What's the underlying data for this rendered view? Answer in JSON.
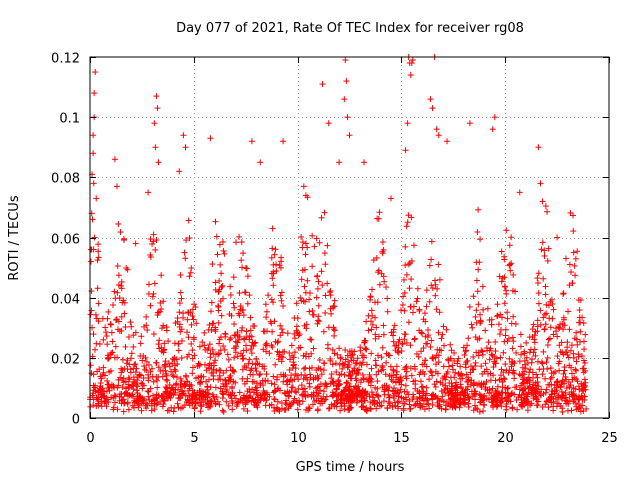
{
  "chart_data": {
    "type": "scatter",
    "title": "Day 077 of 2021, Rate Of TEC Index for receiver rg08",
    "xlabel": "GPS time / hours",
    "ylabel": "ROTI / TECUs",
    "xlim": [
      0,
      25
    ],
    "ylim": [
      0,
      0.12
    ],
    "xticks": [
      0,
      5,
      10,
      15,
      20,
      25
    ],
    "yticks": [
      0,
      0.02,
      0.04,
      0.06,
      0.08,
      0.1,
      0.12
    ],
    "xtick_labels": [
      "0",
      "5",
      "10",
      "15",
      "20",
      "25"
    ],
    "ytick_labels": [
      "0",
      "0.02",
      "0.04",
      "0.06",
      "0.08",
      "0.1",
      "0.12"
    ],
    "grid": true,
    "marker": "plus",
    "color": "#ff0000",
    "series": [
      {
        "x": [
          0.05,
          0.1,
          0.15,
          0.2,
          0.25,
          0.3,
          0.15,
          0.2,
          0.12,
          0.18,
          0.22,
          0.08,
          1.2,
          1.3,
          2.2,
          2.8,
          3.1,
          3.2,
          3.25,
          3.3,
          3.15,
          4.5,
          4.6,
          4.3,
          5.8,
          7.8,
          8.2,
          9.3,
          10.3,
          10.4,
          11.2,
          11.5,
          12.0,
          12.3,
          12.35,
          12.4,
          12.25,
          12.5,
          13.2,
          14.5,
          15.3,
          15.35,
          15.4,
          15.45,
          15.5,
          15.55,
          15.2,
          16.4,
          16.5,
          16.6,
          16.7,
          16.8,
          17.2,
          18.3,
          19.4,
          19.5,
          20.7,
          21.6,
          21.7,
          21.8,
          22.5,
          23.3
        ],
        "y": [
          0.052,
          0.081,
          0.094,
          0.108,
          0.115,
          0.073,
          0.088,
          0.1,
          0.066,
          0.078,
          0.06,
          0.056,
          0.086,
          0.077,
          0.058,
          0.075,
          0.098,
          0.107,
          0.103,
          0.085,
          0.09,
          0.094,
          0.09,
          0.082,
          0.093,
          0.092,
          0.085,
          0.092,
          0.077,
          0.074,
          0.111,
          0.098,
          0.085,
          0.119,
          0.112,
          0.1,
          0.106,
          0.094,
          0.085,
          0.073,
          0.098,
          0.12,
          0.118,
          0.114,
          0.118,
          0.119,
          0.089,
          0.106,
          0.103,
          0.12,
          0.096,
          0.094,
          0.092,
          0.098,
          0.096,
          0.1,
          0.075,
          0.09,
          0.078,
          0.072,
          0.06,
          0.055
        ]
      }
    ]
  }
}
